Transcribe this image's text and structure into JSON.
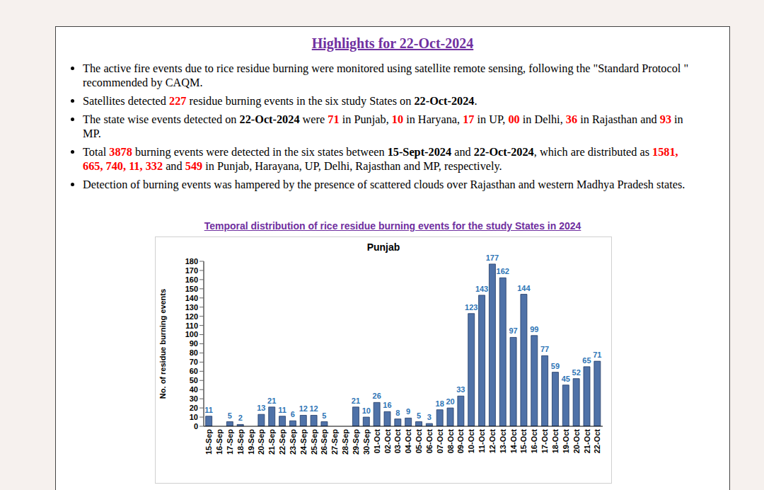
{
  "header": {
    "title": "Highlights for 22-Oct-2024"
  },
  "bullets": [
    [
      {
        "text": "The active fire events due to rice residue burning were monitored using satellite remote sensing, following the \"Standard Protocol \" recommended by CAQM."
      }
    ],
    [
      {
        "text": "Satellites detected "
      },
      {
        "text": "227",
        "color": "#ff0000",
        "bold": true
      },
      {
        "text": " residue burning events in the six study States on "
      },
      {
        "text": "22-Oct-2024",
        "bold": true
      },
      {
        "text": "."
      }
    ],
    [
      {
        "text": "The state wise events detected on "
      },
      {
        "text": "22-Oct-2024",
        "bold": true
      },
      {
        "text": " were "
      },
      {
        "text": "71",
        "color": "#ff0000",
        "bold": true
      },
      {
        "text": " in Punjab, "
      },
      {
        "text": "10",
        "color": "#ff0000",
        "bold": true
      },
      {
        "text": " in Haryana, "
      },
      {
        "text": "17",
        "color": "#ff0000",
        "bold": true
      },
      {
        "text": " in UP, "
      },
      {
        "text": "00",
        "color": "#ff0000",
        "bold": true
      },
      {
        "text": " in Delhi, "
      },
      {
        "text": "36",
        "color": "#ff0000",
        "bold": true
      },
      {
        "text": " in Rajasthan and "
      },
      {
        "text": "93",
        "color": "#ff0000",
        "bold": true
      },
      {
        "text": " in MP."
      }
    ],
    [
      {
        "text": "Total "
      },
      {
        "text": "3878",
        "color": "#ff0000",
        "bold": true
      },
      {
        "text": " burning events were detected in the six states between "
      },
      {
        "text": "15-Sept-2024",
        "bold": true
      },
      {
        "text": " and "
      },
      {
        "text": "22-Oct-2024",
        "bold": true
      },
      {
        "text": ", which are distributed as "
      },
      {
        "text": "1581, 665, 740, 11, 332",
        "color": "#ff0000",
        "bold": true
      },
      {
        "text": " and "
      },
      {
        "text": "549",
        "color": "#ff0000",
        "bold": true
      },
      {
        "text": " in Punjab, Harayana, UP, Delhi, Rajasthan and MP, respectively."
      }
    ],
    [
      {
        "text": "Detection of burning events was hampered by the presence of scattered clouds over Rajasthan and western Madhya Pradesh states."
      }
    ]
  ],
  "chart_data": {
    "type": "bar",
    "title": "Temporal distribution of rice residue burning events for the study States in 2024",
    "subtitle": "Punjab",
    "y_label": "No. of residue burning events",
    "categories": [
      "15-Sep",
      "16-Sep",
      "17-Sep",
      "18-Sep",
      "19-Sep",
      "20-Sep",
      "21-Sep",
      "22-Sep",
      "23-Sep",
      "24-Sep",
      "25-Sep",
      "26-Sep",
      "27-Sep",
      "28-Sep",
      "29-Sep",
      "30-Sep",
      "01-Oct",
      "02-Oct",
      "03-Oct",
      "04-Oct",
      "05-Oct",
      "06-Oct",
      "07-Oct",
      "08-Oct",
      "09-Oct",
      "10-Oct",
      "11-Oct",
      "12-Oct",
      "13-Oct",
      "14-Oct",
      "15-Oct",
      "16-Oct",
      "17-Oct",
      "18-Oct",
      "19-Oct",
      "20-Oct",
      "21-Oct",
      "22-Oct"
    ],
    "values": [
      11,
      0,
      5,
      2,
      0,
      13,
      21,
      11,
      6,
      12,
      12,
      5,
      0,
      0,
      21,
      10,
      26,
      16,
      8,
      9,
      5,
      3,
      18,
      20,
      33,
      123,
      143,
      177,
      162,
      97,
      144,
      99,
      77,
      59,
      45,
      52,
      65,
      71
    ],
    "color": "#4f72a8",
    "ylim": [
      0,
      180
    ],
    "yticks": [
      0,
      10,
      20,
      30,
      40,
      50,
      60,
      70,
      80,
      90,
      100,
      110,
      120,
      130,
      140,
      150,
      160,
      170,
      180
    ],
    "grid": false,
    "data_labels": true
  }
}
